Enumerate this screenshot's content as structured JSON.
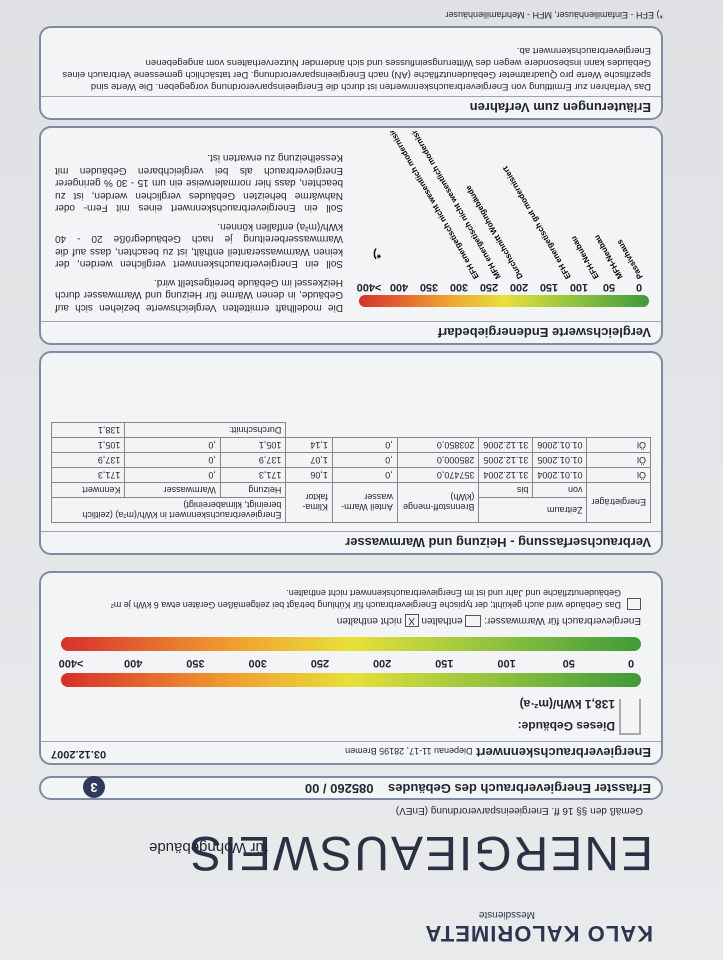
{
  "header": {
    "logo": "KALO KALORIMETA",
    "logo_sub": "Messdienste",
    "title": "ENERGIEAUSWEIS",
    "title_sub": "für Wohngebäude",
    "legal": "Gemäß den §§ 16 ff. Energieeinsparverordnung (EnEV)",
    "page": "3"
  },
  "consumption": {
    "label": "Erfasster Energieverbrauch des Gebäudes",
    "id": "085260 / 00"
  },
  "indicator": {
    "heading": "Energieverbrauchskennwert",
    "address": "Diepenau 11-17, 28195 Bremen",
    "date": "03.12.2007",
    "building_label": "Dieses Gebäude:",
    "building_value": "138,1",
    "unit": "kWh/(m²·a)",
    "scale": [
      "0",
      "50",
      "100",
      "150",
      "200",
      "250",
      "300",
      "350",
      "400",
      ">400"
    ],
    "warmwater_label": "Energieverbrauch für Warmwasser:",
    "option_included": "enthalten",
    "option_excluded": "nicht enthalten",
    "excluded_mark": "X",
    "cooling_note": "Das Gebäude wird auch gekühlt; der typische Energieverbrauch für Kühlung beträgt bei zeitgemäßen Geräten etwa 6 kWh je m² Gebäudenutzfläche und Jahr und ist im Energieverbrauchskennwert nicht enthalten."
  },
  "table": {
    "heading": "Verbrauchserfassung - Heizung und Warmwasser",
    "header_top": [
      "Energieträger",
      "Zeitraum",
      "Brennstoff-menge (kWh)",
      "Anteil Warm-wasser",
      "Klima-faktor",
      "Energieverbrauchskennwert in kWh/(m²a) (zeitlich bereinigt, klimabereinigt)"
    ],
    "header_bottom": [
      "von",
      "bis",
      "Heizung",
      "Warmwasser",
      "Kennwert"
    ],
    "rows": [
      [
        "Öl",
        "01.01.2004",
        "31.12.2004",
        "357470,0",
        ",0",
        "1,06",
        "171,3",
        ",0",
        "171,3"
      ],
      [
        "Öl",
        "01.01.2005",
        "31.12.2005",
        "285000,0",
        ",0",
        "1,07",
        "137,9",
        ",0",
        "137,9"
      ],
      [
        "Öl",
        "01.01.2006",
        "31.12.2006",
        "203850,0",
        ",0",
        "1,14",
        "105,1",
        ",0",
        "105,1"
      ]
    ],
    "average_label": "Durchschnitt:",
    "average": "138,1"
  },
  "comparison": {
    "heading": "Vergleichswerte Endenergiebedarf",
    "scale": [
      "0",
      "50",
      "100",
      "150",
      "200",
      "250",
      "300",
      "350",
      "400",
      ">400"
    ],
    "labels": [
      "Passivhaus",
      "MFH-Neubau",
      "EFH-Neubau",
      "EFH energetisch gut modernisiert",
      "Durchschnitt Wohngebäude",
      "MFH energetisch nicht wesentlich modernisiert",
      "EFH energetisch nicht wesentlich modernisiert"
    ],
    "footnote_mark": "*)",
    "paragraphs": [
      "Die modellhaft ermittelten Vergleichswerte beziehen sich auf Gebäude, in denen Wärme für Heizung und Warmwasser durch Heizkessel im Gebäude bereitgestellt wird.",
      "Soll ein Energieverbrauchskennwert verglichen werden, der keinen Warmwasseranteil enthält, ist zu beachten, dass auf die Warmwasserbereitung je nach Gebäudegröße 20 - 40 kWh/(m²a) entfallen können.",
      "Soll ein Energieverbrauchskennwert eines mit Fern- oder Nahwärme beheizten Gebäudes verglichen werden, ist zu beachten, dass hier normalerweise ein um 15 - 30 % geringerer Energieverbrauch als bei vergleichbaren Gebäuden mit Kesselheizung zu erwarten ist."
    ]
  },
  "explanation": {
    "heading": "Erläuterungen zum Verfahren",
    "text": "Das Verfahren zur Ermittlung von Energieverbrauchskennwerten ist durch die Energieeinsparverordnung vorgegeben. Die Werte sind spezifische Werte pro Quadratmeter Gebäudenutzfläche (AN) nach Energieeinsparverordnung. Der tatsächlich gemessene Verbrauch eines Gebäudes kann insbesondere wegen des Witterungseinflusses und sich ändernder Nutzerverhaltens vom angegebenen Energieverbrauchskennwert ab."
  },
  "footer": "*) EFH - Einfamilienhäuser, MFH - Mehrfamilienhäuser"
}
